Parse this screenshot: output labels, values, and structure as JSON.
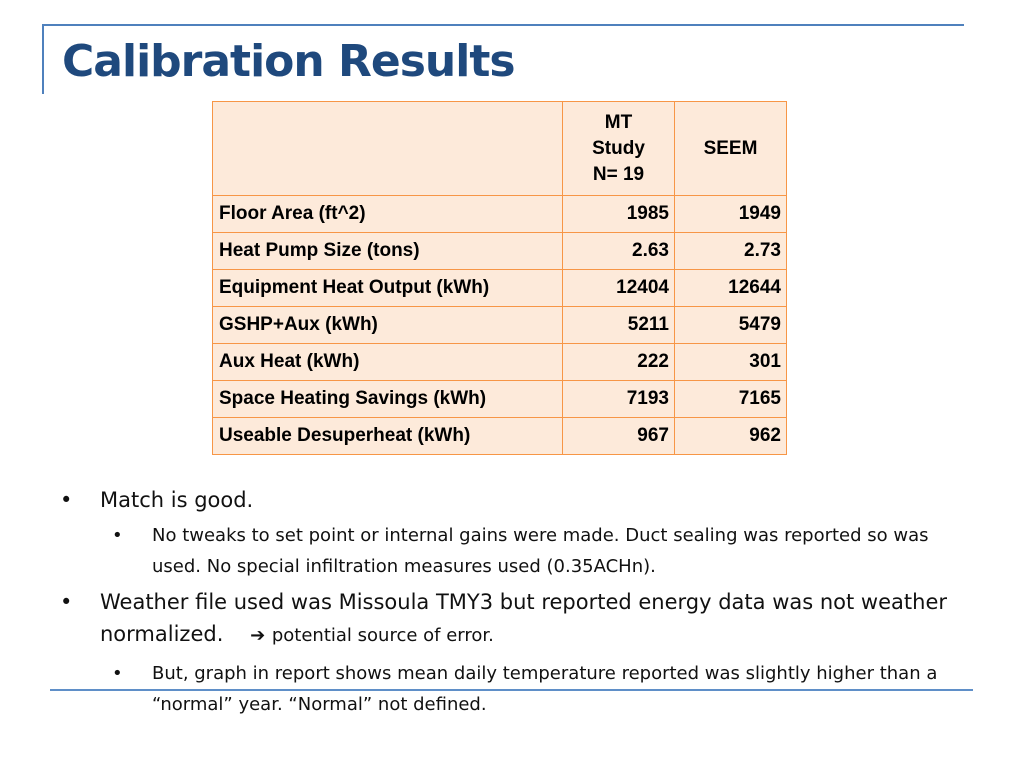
{
  "title": "Calibration Results",
  "table": {
    "header": [
      "",
      "MT\nStudy\nN= 19",
      "SEEM"
    ],
    "rows": [
      [
        "Floor Area (ft^2)",
        "1985",
        "1949"
      ],
      [
        "Heat Pump Size (tons)",
        "2.63",
        "2.73"
      ],
      [
        "Equipment Heat Output (kWh)",
        "12404",
        "12644"
      ],
      [
        "GSHP+Aux (kWh)",
        "5211",
        "5479"
      ],
      [
        "Aux Heat (kWh)",
        "222",
        "301"
      ],
      [
        "Space Heating Savings (kWh)",
        "7193",
        "7165"
      ],
      [
        "Useable Desuperheat (kWh)",
        "967",
        "962"
      ]
    ]
  },
  "bullets": {
    "b1": "Match is good.",
    "b1_1": "No tweaks to set point or internal gains were made.  Duct sealing was reported so was used.  No special infiltration measures used (0.35ACHn).",
    "b2": "Weather file used was Missoula TMY3 but reported energy data was not weather normalized.",
    "b2_arrow": "➔",
    "b2_tail": "potential source of error.",
    "b2_1": "But, graph in report shows mean daily temperature reported was slightly higher than a “normal” year.  “Normal” not defined."
  },
  "colors": {
    "title": "#1f497d",
    "rule": "#4f81bd",
    "table_border": "#f79646",
    "table_fill": "#fdeada"
  }
}
